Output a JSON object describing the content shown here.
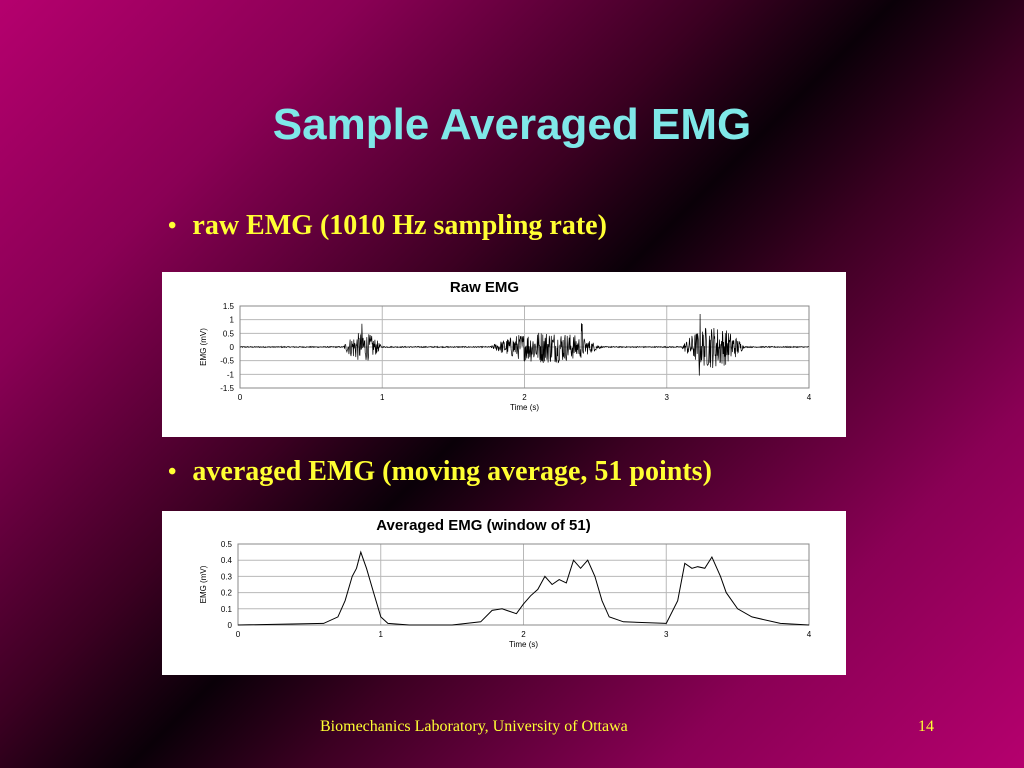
{
  "slide": {
    "title": "Sample Averaged EMG",
    "bullet1": "raw EMG (1010 Hz sampling rate)",
    "bullet2": "averaged EMG (moving average, 51 points)",
    "footer": "Biomechanics Laboratory, University of Ottawa",
    "page": "14",
    "colors": {
      "title": "#7fe8e8",
      "text": "#ffff33",
      "background": "#b5006e"
    }
  },
  "chart_data": [
    {
      "type": "line",
      "title": "Raw EMG",
      "xlabel": "Time (s)",
      "ylabel": "EMG (mV)",
      "xlim": [
        0,
        4
      ],
      "ylim": [
        -1.5,
        1.5
      ],
      "x_ticks": [
        "0",
        "1",
        "2",
        "3",
        "4"
      ],
      "y_ticks": [
        "1.5",
        "1",
        "0.5",
        "0",
        "-0.5",
        "-1",
        "-1.5"
      ],
      "grid": true,
      "bursts": [
        {
          "start": 0.72,
          "end": 1.0,
          "peak_time": 0.86,
          "peak_amplitude": 0.9
        },
        {
          "start": 1.75,
          "end": 2.55,
          "peak_time": 2.4,
          "peak_amplitude": 1.0
        },
        {
          "start": 3.1,
          "end": 3.55,
          "peak_time": 3.23,
          "peak_amplitude": 1.3
        }
      ]
    },
    {
      "type": "line",
      "title": "Averaged EMG (window of 51)",
      "xlabel": "Time (s)",
      "ylabel": "EMG (mV)",
      "xlim": [
        0,
        4
      ],
      "ylim": [
        0,
        0.5
      ],
      "x_ticks": [
        "0",
        "1",
        "2",
        "3",
        "4"
      ],
      "y_ticks": [
        "0.5",
        "0.4",
        "0.3",
        "0.2",
        "0.1",
        "0"
      ],
      "grid": true,
      "series": [
        {
          "x": [
            0,
            0.6,
            0.7,
            0.75,
            0.8,
            0.83,
            0.86,
            0.88,
            0.9,
            0.95,
            1.0,
            1.05,
            1.2,
            1.5,
            1.7,
            1.78,
            1.85,
            1.95,
            2.0,
            2.05,
            2.1,
            2.15,
            2.2,
            2.25,
            2.3,
            2.35,
            2.4,
            2.45,
            2.5,
            2.55,
            2.6,
            2.7,
            3.0,
            3.08,
            3.13,
            3.18,
            3.22,
            3.27,
            3.32,
            3.38,
            3.42,
            3.5,
            3.6,
            3.8,
            4.0
          ],
          "y": [
            0.0,
            0.01,
            0.05,
            0.15,
            0.3,
            0.35,
            0.45,
            0.4,
            0.35,
            0.2,
            0.05,
            0.01,
            0.0,
            0.0,
            0.02,
            0.09,
            0.1,
            0.07,
            0.13,
            0.18,
            0.22,
            0.3,
            0.25,
            0.28,
            0.26,
            0.4,
            0.35,
            0.4,
            0.3,
            0.15,
            0.05,
            0.02,
            0.01,
            0.15,
            0.38,
            0.35,
            0.36,
            0.35,
            0.42,
            0.3,
            0.2,
            0.1,
            0.05,
            0.01,
            0.0
          ]
        }
      ]
    }
  ]
}
